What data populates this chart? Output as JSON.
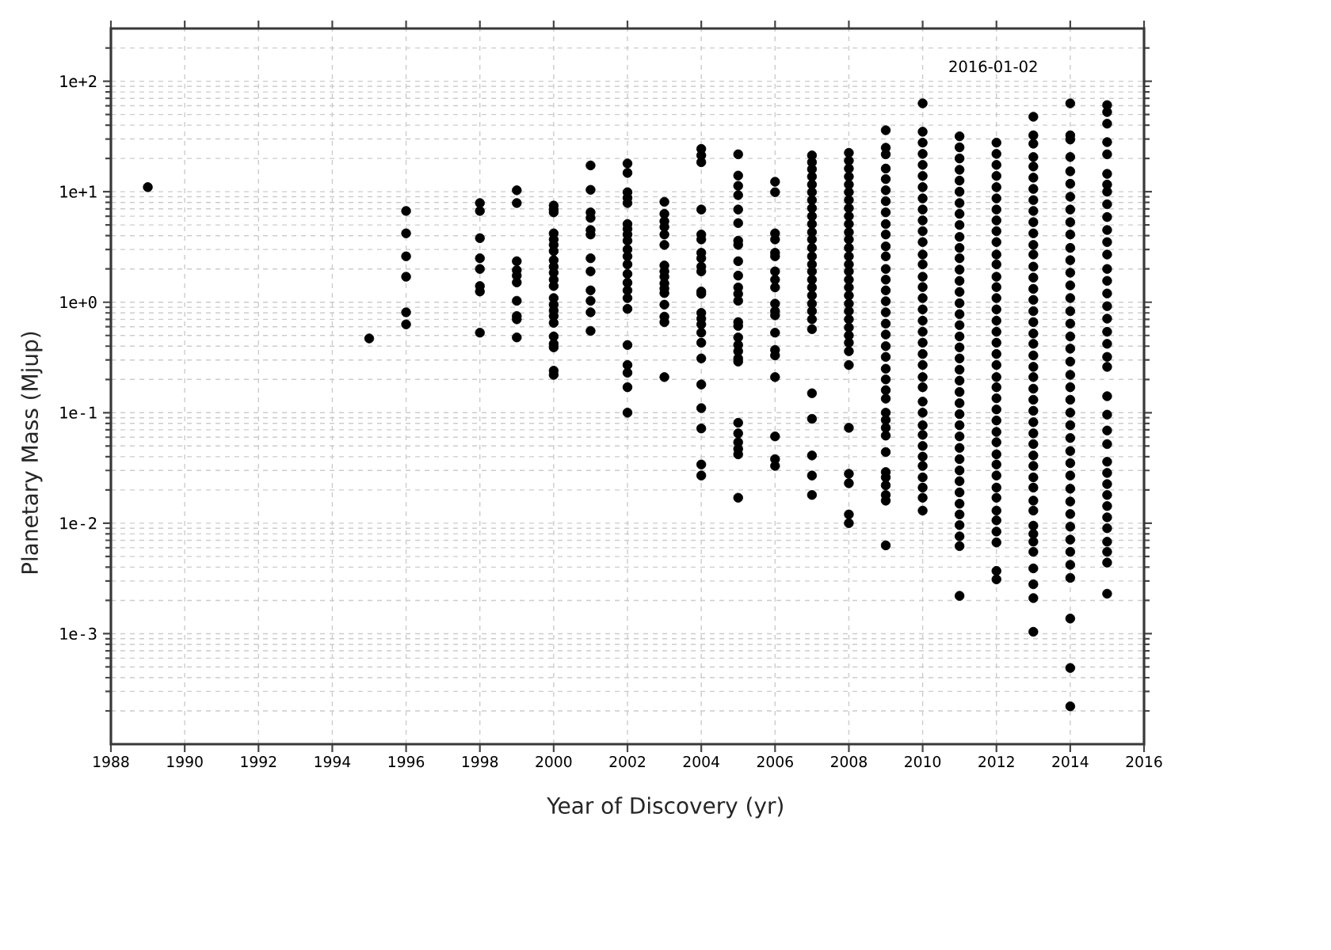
{
  "chart_data": {
    "type": "scatter",
    "xlabel": "Year of Discovery (yr)",
    "ylabel": "Planetary Mass (Mjup)",
    "annotations": [
      "2016-01-02"
    ],
    "color": "#000000",
    "marker": "circle",
    "log": "y",
    "grid": true,
    "xlim": [
      1988,
      2016
    ],
    "xticks": [
      1988,
      1990,
      1992,
      1994,
      1996,
      1998,
      2000,
      2002,
      2004,
      2006,
      2008,
      2010,
      2012,
      2014,
      2016
    ],
    "ylim": [
      0.0001,
      300
    ],
    "yticks": [
      {
        "value": 0.001,
        "label": "1e-3"
      },
      {
        "value": 0.01,
        "label": "1e-2"
      },
      {
        "value": 0.1,
        "label": "1e-1"
      },
      {
        "value": 1,
        "label": "1e+0"
      },
      {
        "value": 10,
        "label": "1e+1"
      },
      {
        "value": 100,
        "label": "1e+2"
      }
    ],
    "x": [
      1989,
      1995,
      1996,
      1996,
      1996,
      1996,
      1996,
      1996,
      1998,
      1998,
      1998,
      1998,
      1998,
      1998,
      1998,
      1998,
      1999,
      1999,
      1999,
      1999,
      1999,
      1999,
      1999,
      1999,
      1999,
      1999,
      2000,
      2000,
      2000,
      2000,
      2000,
      2000,
      2000,
      2000,
      2000,
      2000,
      2000,
      2000,
      2000,
      2000,
      2000,
      2000,
      2000,
      2000,
      2000,
      2000,
      2000,
      2000,
      2001,
      2001,
      2001,
      2001,
      2001,
      2001,
      2001,
      2001,
      2001,
      2001,
      2001,
      2001,
      2002,
      2002,
      2002,
      2002,
      2002,
      2002,
      2002,
      2002,
      2002,
      2002,
      2002,
      2002,
      2002,
      2002,
      2002,
      2002,
      2002,
      2002,
      2002,
      2002,
      2002,
      2002,
      2003,
      2003,
      2003,
      2003,
      2003,
      2003,
      2003,
      2003,
      2003,
      2003,
      2003,
      2003,
      2003,
      2003,
      2003,
      2003,
      2004,
      2004,
      2004,
      2004,
      2004,
      2004,
      2004,
      2004,
      2004,
      2004,
      2004,
      2004,
      2004,
      2004,
      2004,
      2004,
      2004,
      2004,
      2004,
      2004,
      2004,
      2004,
      2004,
      2005,
      2005,
      2005,
      2005,
      2005,
      2005,
      2005,
      2005,
      2005,
      2005,
      2005,
      2005,
      2005,
      2005,
      2005,
      2005,
      2005,
      2005,
      2005,
      2005,
      2005,
      2005,
      2005,
      2005,
      2005,
      2005,
      2006,
      2006,
      2006,
      2006,
      2006,
      2006,
      2006,
      2006,
      2006,
      2006,
      2006,
      2006,
      2006,
      2006,
      2006,
      2006,
      2006,
      2006,
      2006,
      2007,
      2007,
      2007,
      2007,
      2007,
      2007,
      2007,
      2007,
      2007,
      2007,
      2007,
      2007,
      2007,
      2007,
      2007,
      2007,
      2007,
      2007,
      2007,
      2007,
      2007,
      2007,
      2007,
      2007,
      2007,
      2007,
      2007,
      2007,
      2008,
      2008,
      2008,
      2008,
      2008,
      2008,
      2008,
      2008,
      2008,
      2008,
      2008,
      2008,
      2008,
      2008,
      2008,
      2008,
      2008,
      2008,
      2008,
      2008,
      2008,
      2008,
      2008,
      2008,
      2008,
      2008,
      2008,
      2008,
      2008,
      2008,
      2008,
      2008,
      2009,
      2009,
      2009,
      2009,
      2009,
      2009,
      2009,
      2009,
      2009,
      2009,
      2009,
      2009,
      2009,
      2009,
      2009,
      2009,
      2009,
      2009,
      2009,
      2009,
      2009,
      2009,
      2009,
      2009,
      2009,
      2009,
      2009,
      2009,
      2009,
      2009,
      2009,
      2009,
      2009,
      2009,
      2009,
      2009,
      2010,
      2010,
      2010,
      2010,
      2010,
      2010,
      2010,
      2010,
      2010,
      2010,
      2010,
      2010,
      2010,
      2010,
      2010,
      2010,
      2010,
      2010,
      2010,
      2010,
      2010,
      2010,
      2010,
      2010,
      2010,
      2010,
      2010,
      2010,
      2010,
      2010,
      2010,
      2010,
      2010,
      2010,
      2010,
      2010,
      2011,
      2011,
      2011,
      2011,
      2011,
      2011,
      2011,
      2011,
      2011,
      2011,
      2011,
      2011,
      2011,
      2011,
      2011,
      2011,
      2011,
      2011,
      2011,
      2011,
      2011,
      2011,
      2011,
      2011,
      2011,
      2011,
      2011,
      2011,
      2011,
      2011,
      2011,
      2011,
      2011,
      2011,
      2011,
      2011,
      2011,
      2011,
      2011,
      2012,
      2012,
      2012,
      2012,
      2012,
      2012,
      2012,
      2012,
      2012,
      2012,
      2012,
      2012,
      2012,
      2012,
      2012,
      2012,
      2012,
      2012,
      2012,
      2012,
      2012,
      2012,
      2012,
      2012,
      2012,
      2012,
      2012,
      2012,
      2012,
      2012,
      2012,
      2012,
      2012,
      2012,
      2012,
      2012,
      2012,
      2012,
      2012,
      2013,
      2013,
      2013,
      2013,
      2013,
      2013,
      2013,
      2013,
      2013,
      2013,
      2013,
      2013,
      2013,
      2013,
      2013,
      2013,
      2013,
      2013,
      2013,
      2013,
      2013,
      2013,
      2013,
      2013,
      2013,
      2013,
      2013,
      2013,
      2013,
      2013,
      2013,
      2013,
      2013,
      2013,
      2013,
      2013,
      2013,
      2013,
      2013,
      2013,
      2013,
      2013,
      2013,
      2013,
      2014,
      2014,
      2014,
      2014,
      2014,
      2014,
      2014,
      2014,
      2014,
      2014,
      2014,
      2014,
      2014,
      2014,
      2014,
      2014,
      2014,
      2014,
      2014,
      2014,
      2014,
      2014,
      2014,
      2014,
      2014,
      2014,
      2014,
      2014,
      2014,
      2014,
      2014,
      2014,
      2014,
      2014,
      2014,
      2014,
      2014,
      2014,
      2014,
      2014,
      2015,
      2015,
      2015,
      2015,
      2015,
      2015,
      2015,
      2015,
      2015,
      2015,
      2015,
      2015,
      2015,
      2015,
      2015,
      2015,
      2015,
      2015,
      2015,
      2015,
      2015,
      2015,
      2015,
      2015,
      2015,
      2015,
      2015,
      2015,
      2015,
      2015,
      2015,
      2015,
      2015,
      2015,
      2015,
      2015,
      2015
    ],
    "values": [
      11,
      0.47,
      6.7,
      4.2,
      2.6,
      1.7,
      0.81,
      0.63,
      7.9,
      6.7,
      3.8,
      2.5,
      2.0,
      1.4,
      1.25,
      0.53,
      10.3,
      7.9,
      2.35,
      1.95,
      1.74,
      1.51,
      1.03,
      0.75,
      0.7,
      0.48,
      7.5,
      6.9,
      6.5,
      4.2,
      3.7,
      3.3,
      2.9,
      2.4,
      2.1,
      1.85,
      1.6,
      1.4,
      1.09,
      0.95,
      0.84,
      0.75,
      0.65,
      0.49,
      0.42,
      0.39,
      0.24,
      0.22,
      17.3,
      10.4,
      6.5,
      5.8,
      4.5,
      4.1,
      2.5,
      1.9,
      1.28,
      1.03,
      0.81,
      0.55,
      18,
      14.8,
      9.9,
      8.8,
      7.9,
      5.1,
      4.6,
      4.1,
      3.6,
      3.0,
      2.6,
      2.2,
      1.8,
      1.5,
      1.28,
      1.09,
      0.87,
      0.41,
      0.27,
      0.23,
      0.17,
      0.1,
      8.1,
      6.3,
      5.4,
      4.8,
      4.1,
      3.3,
      2.15,
      1.9,
      1.7,
      1.48,
      1.33,
      1.21,
      0.95,
      0.74,
      0.66,
      0.21,
      24.4,
      21.3,
      18.5,
      6.9,
      4.1,
      3.7,
      2.8,
      2.5,
      2.1,
      1.9,
      1.25,
      1.19,
      0.8,
      0.71,
      0.63,
      0.53,
      0.43,
      0.31,
      0.18,
      0.11,
      0.072,
      0.034,
      0.027,
      21.8,
      14.0,
      11.3,
      9.3,
      6.9,
      5.2,
      3.6,
      3.3,
      2.35,
      1.74,
      1.36,
      1.19,
      1.03,
      0.66,
      0.61,
      0.48,
      0.41,
      0.36,
      0.31,
      0.29,
      0.081,
      0.065,
      0.054,
      0.047,
      0.042,
      0.017,
      12.3,
      9.9,
      4.2,
      3.7,
      2.8,
      2.6,
      1.9,
      1.6,
      1.36,
      0.97,
      0.83,
      0.76,
      0.53,
      0.37,
      0.33,
      0.21,
      0.061,
      0.038,
      0.033,
      21.3,
      18.5,
      16.0,
      13.7,
      11.6,
      9.9,
      8.4,
      7.1,
      6.0,
      5.1,
      4.3,
      3.7,
      3.1,
      2.6,
      2.2,
      1.9,
      1.6,
      1.36,
      1.15,
      0.97,
      0.83,
      0.7,
      0.57,
      0.15,
      0.088,
      0.041,
      0.027,
      0.018,
      22.5,
      19.1,
      16.2,
      13.7,
      11.6,
      9.9,
      8.4,
      7.1,
      6.0,
      5.1,
      4.3,
      3.7,
      3.1,
      2.6,
      2.2,
      1.9,
      1.6,
      1.36,
      1.15,
      0.97,
      0.83,
      0.7,
      0.59,
      0.5,
      0.43,
      0.36,
      0.27,
      0.073,
      0.028,
      0.023,
      0.012,
      0.01,
      36,
      25,
      21.8,
      16.2,
      13.0,
      10.3,
      8.2,
      6.5,
      5.1,
      4.1,
      3.2,
      2.6,
      2.0,
      1.6,
      1.28,
      1.02,
      0.81,
      0.64,
      0.51,
      0.4,
      0.32,
      0.25,
      0.2,
      0.16,
      0.134,
      0.1,
      0.086,
      0.073,
      0.062,
      0.044,
      0.029,
      0.026,
      0.022,
      0.018,
      0.016,
      0.0063,
      63,
      34.9,
      27.8,
      22.0,
      17.5,
      13.9,
      11.0,
      8.7,
      6.9,
      5.5,
      4.4,
      3.5,
      2.7,
      2.2,
      1.7,
      1.37,
      1.09,
      0.86,
      0.68,
      0.54,
      0.43,
      0.34,
      0.27,
      0.21,
      0.17,
      0.126,
      0.1,
      0.077,
      0.063,
      0.05,
      0.04,
      0.033,
      0.026,
      0.021,
      0.017,
      0.013,
      31.7,
      25.2,
      20.0,
      15.8,
      12.6,
      10.0,
      7.9,
      6.3,
      5.0,
      3.9,
      3.1,
      2.5,
      1.97,
      1.56,
      1.24,
      0.98,
      0.78,
      0.62,
      0.49,
      0.39,
      0.31,
      0.245,
      0.195,
      0.154,
      0.122,
      0.097,
      0.077,
      0.061,
      0.048,
      0.038,
      0.03,
      0.024,
      0.019,
      0.015,
      0.012,
      0.0096,
      0.0076,
      0.0062,
      0.0022,
      27.8,
      22.0,
      17.5,
      13.9,
      11.0,
      8.7,
      6.9,
      5.5,
      4.4,
      3.5,
      2.7,
      2.2,
      1.7,
      1.37,
      1.09,
      0.86,
      0.68,
      0.54,
      0.43,
      0.34,
      0.27,
      0.21,
      0.17,
      0.135,
      0.107,
      0.085,
      0.067,
      0.054,
      0.042,
      0.034,
      0.027,
      0.021,
      0.017,
      0.013,
      0.0106,
      0.0084,
      0.0067,
      0.0037,
      0.0031,
      47.7,
      32.4,
      27.2,
      20.6,
      16.9,
      13.4,
      10.6,
      8.4,
      6.7,
      5.3,
      4.2,
      3.3,
      2.7,
      2.1,
      1.67,
      1.32,
      1.05,
      0.83,
      0.66,
      0.52,
      0.42,
      0.33,
      0.26,
      0.21,
      0.165,
      0.131,
      0.104,
      0.082,
      0.065,
      0.052,
      0.041,
      0.033,
      0.026,
      0.021,
      0.016,
      0.013,
      0.0095,
      0.008,
      0.0068,
      0.0055,
      0.0039,
      0.0028,
      0.0021,
      0.00104,
      63,
      32.4,
      29.7,
      20.6,
      15.3,
      11.8,
      9.0,
      6.9,
      5.3,
      4.1,
      3.1,
      2.4,
      1.85,
      1.42,
      1.09,
      0.83,
      0.64,
      0.49,
      0.38,
      0.29,
      0.22,
      0.17,
      0.131,
      0.1,
      0.077,
      0.059,
      0.045,
      0.035,
      0.027,
      0.0205,
      0.0157,
      0.0121,
      0.0093,
      0.0071,
      0.0055,
      0.0042,
      0.0032,
      0.00137,
      0.00049,
      0.00022,
      60.8,
      52.6,
      41.3,
      28.1,
      21.8,
      14.5,
      11.6,
      10.0,
      7.7,
      5.9,
      4.5,
      3.5,
      2.7,
      2.0,
      1.56,
      1.2,
      0.92,
      0.71,
      0.54,
      0.42,
      0.32,
      0.26,
      0.141,
      0.096,
      0.069,
      0.052,
      0.036,
      0.0285,
      0.0226,
      0.018,
      0.0143,
      0.0113,
      0.009,
      0.0068,
      0.0055,
      0.0044,
      0.0023
    ]
  }
}
